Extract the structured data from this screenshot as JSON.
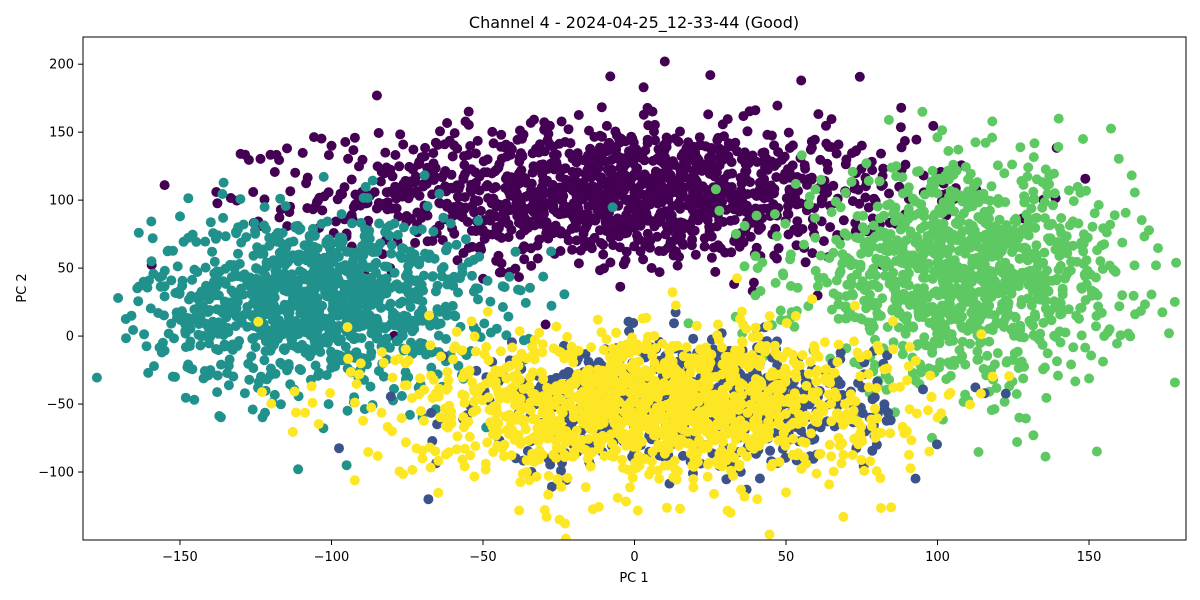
{
  "chart_data": {
    "type": "scatter",
    "title": "Channel 4 - 2024-04-25_12-33-44 (Good)",
    "xlabel": "PC 1",
    "ylabel": "PC 2",
    "xlim": [
      -182,
      182
    ],
    "ylim": [
      -150,
      220
    ],
    "xticks": [
      -150,
      -100,
      -50,
      0,
      50,
      100,
      150
    ],
    "yticks": [
      -100,
      -50,
      0,
      50,
      100,
      150,
      200
    ],
    "grid": false,
    "legend": "none",
    "series": [
      {
        "color": "#440154",
        "center": [
          -5,
          105
        ],
        "spread": [
          48,
          25
        ],
        "count": 1400,
        "outliers": [
          [
            10,
            202
          ],
          [
            -8,
            191
          ],
          [
            25,
            192
          ],
          [
            -85,
            177
          ],
          [
            55,
            188
          ],
          [
            -130,
            134
          ],
          [
            -138,
            106
          ],
          [
            88,
            168
          ],
          [
            -100,
            140
          ],
          [
            3,
            183
          ]
        ]
      },
      {
        "color": "#21918c",
        "center": [
          -105,
          25
        ],
        "spread": [
          27,
          32
        ],
        "count": 1100,
        "outliers": [
          [
            -166,
            15
          ],
          [
            -162,
            40
          ],
          [
            -159,
            72
          ],
          [
            -111,
            -98
          ],
          [
            -95,
            -95
          ],
          [
            -155,
            48
          ],
          [
            -150,
            88
          ]
        ]
      },
      {
        "color": "#5ec962",
        "center": [
          108,
          45
        ],
        "spread": [
          27,
          38
        ],
        "count": 1100,
        "outliers": [
          [
            165,
            52
          ],
          [
            160,
            22
          ],
          [
            157,
            82
          ],
          [
            155,
            0
          ],
          [
            148,
            145
          ],
          [
            140,
            160
          ],
          [
            127,
            -60
          ],
          [
            95,
            165
          ]
        ]
      },
      {
        "color": "#3b528b",
        "center": [
          18,
          -50
        ],
        "spread": [
          32,
          22
        ],
        "count": 700,
        "outliers": [
          [
            -68,
            -120
          ],
          [
            -34,
            -100
          ],
          [
            80,
            -80
          ],
          [
            55,
            -28
          ]
        ]
      },
      {
        "color": "#fde725",
        "center": [
          5,
          -50
        ],
        "spread": [
          40,
          28
        ],
        "count": 1300,
        "outliers": [
          [
            -29,
            -133
          ],
          [
            15,
            -127
          ],
          [
            -80,
            -70
          ],
          [
            50,
            -115
          ],
          [
            100,
            -60
          ],
          [
            -70,
            -90
          ]
        ]
      }
    ]
  }
}
